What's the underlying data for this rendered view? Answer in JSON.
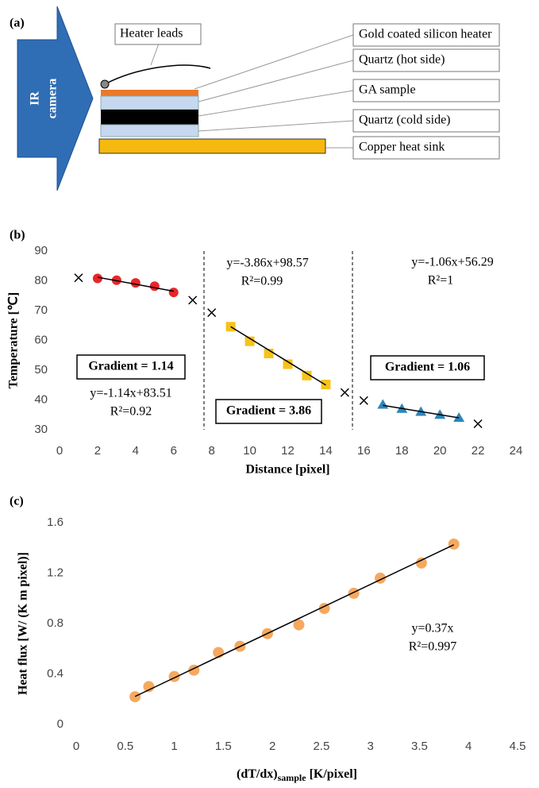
{
  "panel_labels": [
    "(a)",
    "(b)",
    "(c)"
  ],
  "diagram": {
    "camera": [
      "IR",
      "camera"
    ],
    "heater_leads": "Heater leads",
    "labels": [
      "Gold coated silicon heater",
      "Quartz (hot side)",
      "GA sample",
      "Quartz (cold side)",
      "Copper heat sink"
    ]
  },
  "chart_data": [
    {
      "type": "scatter",
      "x_label": "Distance [pixel]",
      "y_label": "Temperature [℃]",
      "xlim": [
        0,
        24
      ],
      "xticks": [
        0,
        2,
        4,
        6,
        8,
        10,
        12,
        14,
        16,
        18,
        20,
        22,
        24
      ],
      "ylim": [
        30,
        90
      ],
      "yticks": [
        30,
        40,
        50,
        60,
        70,
        80,
        90
      ],
      "series": [
        {
          "marker": "circle",
          "color": "#e8262a",
          "x": [
            2,
            3,
            4,
            5,
            6
          ],
          "values": [
            80.8,
            80.2,
            79.3,
            78.2,
            76.1
          ]
        },
        {
          "marker": "square",
          "color": "#f7c21a",
          "x": [
            9,
            10,
            11,
            12,
            13,
            14
          ],
          "values": [
            64.6,
            59.7,
            55.6,
            52,
            48.2,
            45.2
          ]
        },
        {
          "marker": "triangle",
          "color": "#2e86b8",
          "x": [
            17,
            18,
            19,
            20,
            21
          ],
          "values": [
            38.4,
            37,
            36,
            35,
            34
          ]
        },
        {
          "marker": "x",
          "color": "#000000",
          "x": [
            1,
            7,
            8,
            15,
            16,
            22
          ],
          "values": [
            81,
            73.5,
            69.3,
            42.5,
            39.8,
            32
          ]
        },
        {
          "marker": "line",
          "color": "#000000",
          "x": [
            2,
            6
          ],
          "values": [
            81.2,
            76.5
          ]
        },
        {
          "marker": "line",
          "color": "#000000",
          "x": [
            9,
            14
          ],
          "values": [
            64.6,
            45
          ]
        },
        {
          "marker": "line",
          "color": "#000000",
          "x": [
            17,
            21
          ],
          "values": [
            38.2,
            34
          ]
        }
      ],
      "annotations": [
        "y=-3.86x+98.57",
        "R²=0.99",
        "y=-1.06x+56.29",
        "R²=1",
        "y=-1.14x+83.51",
        "R²=0.92"
      ],
      "boxed_annotations": [
        "Gradient = 1.14",
        "Gradient = 3.86",
        "Gradient = 1.06"
      ]
    },
    {
      "type": "scatter",
      "x_label": {
        "main": "(dT/dx)",
        "sub": "sample",
        "unit": " [K/pixel]"
      },
      "y_label": "Heat flux [W/ (K m pixel)]",
      "xlim": [
        0,
        4.5
      ],
      "xticks": [
        0,
        0.5,
        1,
        1.5,
        2,
        2.5,
        3,
        3.5,
        4,
        4.5
      ],
      "ylim": [
        0,
        1.6
      ],
      "yticks": [
        0,
        0.4,
        0.8,
        1.2,
        1.6
      ],
      "series": [
        {
          "marker": "circle",
          "color": "#f5a95f",
          "x": [
            0.6,
            0.74,
            1.0,
            1.2,
            1.45,
            1.67,
            1.95,
            2.27,
            2.53,
            2.83,
            3.1,
            3.52,
            3.85
          ],
          "values": [
            0.22,
            0.3,
            0.38,
            0.43,
            0.57,
            0.62,
            0.72,
            0.79,
            0.92,
            1.04,
            1.16,
            1.28,
            1.43
          ]
        },
        {
          "marker": "line",
          "color": "#000000",
          "x": [
            0.6,
            3.85
          ],
          "values": [
            0.222,
            1.425
          ]
        }
      ],
      "annotations": [
        "y=0.37x",
        "R²=0.997"
      ],
      "boxed_annotations": []
    }
  ]
}
